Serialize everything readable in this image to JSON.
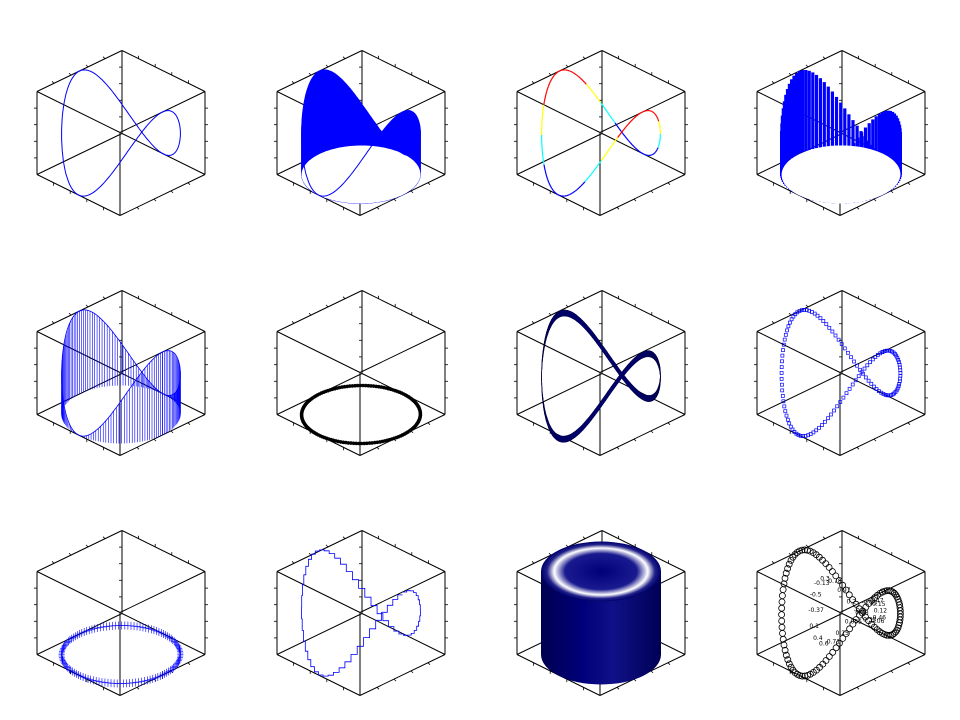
{
  "figure": {
    "layout": {
      "rows": 3,
      "cols": 4
    },
    "colors": {
      "blue": "#0000ff",
      "navy": "#00007a",
      "black": "#000000",
      "white": "#ffffff"
    }
  },
  "chart_data": [
    {
      "type": "line",
      "subtype": "plot3",
      "color": "#0000ff",
      "curve": "x=cos(t), y=sin(t), z=cos(2t)"
    },
    {
      "type": "area",
      "subtype": "area3",
      "color": "#0000ff"
    },
    {
      "type": "line",
      "subtype": "color-mapped line",
      "colormap": [
        "#0000ff",
        "#00ffff",
        "#ffff00",
        "#ff0000"
      ]
    },
    {
      "type": "bar",
      "subtype": "bars3",
      "color": "#0000ff"
    },
    {
      "type": "line",
      "subtype": "stems3",
      "color": "#0000ff"
    },
    {
      "type": "scatter",
      "subtype": "dots3 (projected)",
      "color": "#000000"
    },
    {
      "type": "area",
      "subtype": "ribbon3",
      "color": "#00007a"
    },
    {
      "type": "scatter",
      "subtype": "square markers",
      "color": "#0000ff"
    },
    {
      "type": "scatter",
      "subtype": "error bars 3d (projected)",
      "color": "#0000ff"
    },
    {
      "type": "line",
      "subtype": "stairs3",
      "color": "#0000ff"
    },
    {
      "type": "heatmap",
      "subtype": "tube surface",
      "color": "#00007a"
    },
    {
      "type": "scatter",
      "subtype": "value labels",
      "color": "#000000",
      "labels": [
        "0.2",
        "0.97",
        "0.78",
        "0.3",
        "-0.13",
        "-0.5",
        "-0.37",
        "0.1",
        "0.4",
        "0.6",
        "0.71",
        "0.25",
        "0.055",
        "-0.2",
        "-0.33",
        "-0.47",
        "0.15",
        "0.12",
        "0.46",
        "-0.06",
        "0.33",
        "0.88"
      ]
    }
  ]
}
